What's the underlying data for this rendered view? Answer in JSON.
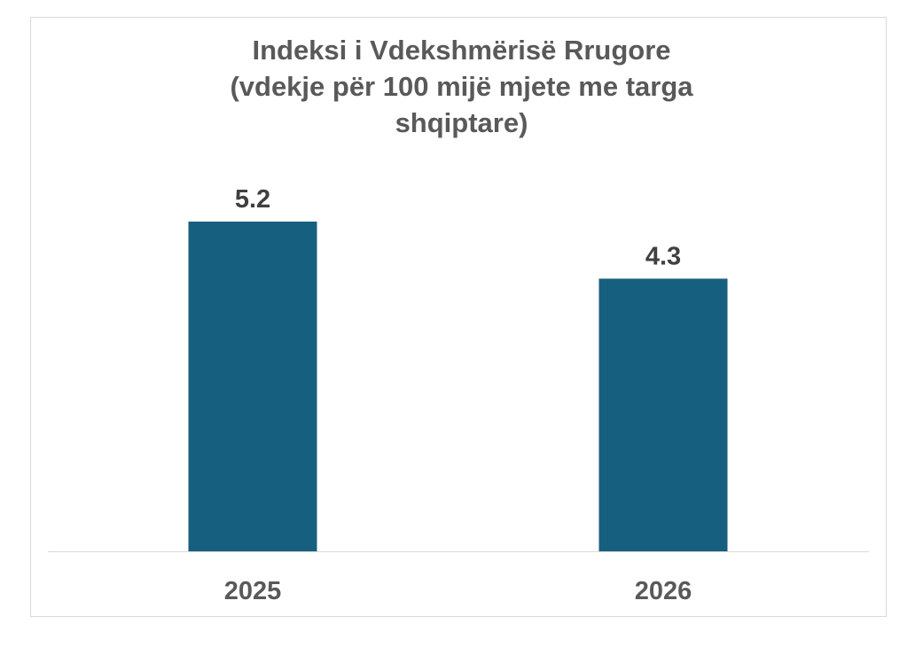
{
  "chart_data": {
    "type": "bar",
    "title_lines": [
      "Indeksi i Vdekshmërisë Rrugore",
      "(vdekje për 100 mijë mjete me targa",
      "shqiptare)"
    ],
    "categories": [
      "2025",
      "2026"
    ],
    "values": [
      5.2,
      4.3
    ],
    "data_labels": [
      "5.2",
      "4.3"
    ],
    "xlabel": "",
    "ylabel": "",
    "ylim": [
      0,
      5.2
    ],
    "grid": false,
    "legend": "none",
    "bar_color": "#175F7F",
    "text_color": "#595959",
    "label_color": "#404040"
  }
}
